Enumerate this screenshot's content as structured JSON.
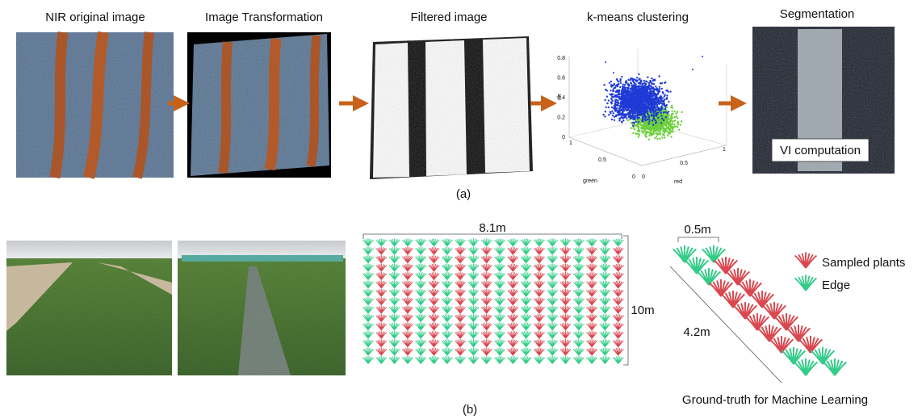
{
  "panel_a": {
    "steps": [
      {
        "title": "NIR original image"
      },
      {
        "title": "Image Transformation"
      },
      {
        "title": "Filtered image"
      },
      {
        "title": "k-means clustering"
      },
      {
        "title": "Segmentation"
      }
    ],
    "overlay_label": "VI computation",
    "scatter": {
      "z_label": "nir",
      "y_label": "green",
      "x_label": "red",
      "z_ticks": [
        "0.8",
        "0.6",
        "0.4",
        "0.2",
        "0"
      ],
      "y_ticks": [
        "1",
        "0.5",
        "0"
      ],
      "x_ticks": [
        "0",
        "0.5",
        "1"
      ]
    },
    "caption": "(a)"
  },
  "panel_b": {
    "width_label": "8.1m",
    "height_label": "10m",
    "spacing_label": "0.5m",
    "length_label": "4.2m",
    "legend": [
      "Sampled plants",
      "Edge"
    ],
    "diagram_caption": "Ground-truth for Machine Learning",
    "caption": "(b)"
  }
}
